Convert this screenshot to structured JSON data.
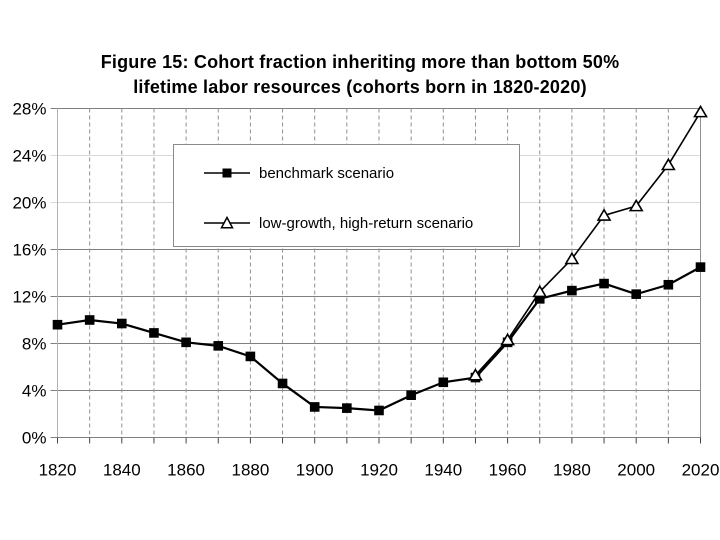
{
  "title_lines": {
    "line1": "Figure 15: Cohort fraction inheriting more than bottom 50%",
    "line2": "lifetime labor resources (cohorts born in 1820-2020)"
  },
  "legend": {
    "items": [
      {
        "label": "benchmark scenario",
        "marker": "filled-square"
      },
      {
        "label": "low-growth, high-return scenario",
        "marker": "open-triangle"
      }
    ]
  },
  "colors": {
    "series": "#000000",
    "gridline_major": "#808080",
    "gridline_faint": "#d9d9d9",
    "gridline_vertical": "#909090",
    "axis_left": "#b3b3b3",
    "tick": "#444444",
    "background": "#ffffff"
  },
  "chart_data": {
    "type": "line",
    "title": "Figure 15: Cohort fraction inheriting more than bottom 50% lifetime labor resources (cohorts born in 1820-2020)",
    "xlabel": "",
    "ylabel": "",
    "xlim": [
      1820,
      2020
    ],
    "ylim": [
      0,
      28
    ],
    "grid": true,
    "legend_position": "upper-left-inside",
    "x": [
      1820,
      1830,
      1840,
      1850,
      1860,
      1870,
      1880,
      1890,
      1900,
      1910,
      1920,
      1930,
      1940,
      1950,
      1960,
      1970,
      1980,
      1990,
      2000,
      2010,
      2020
    ],
    "series": [
      {
        "name": "benchmark scenario",
        "marker": "filled-square",
        "values": [
          9.6,
          10.0,
          9.7,
          8.9,
          8.1,
          7.8,
          6.9,
          4.6,
          2.6,
          2.5,
          2.3,
          3.6,
          4.7,
          5.1,
          8.1,
          11.8,
          12.5,
          13.1,
          12.2,
          13.0,
          14.5
        ]
      },
      {
        "name": "low-growth, high-return scenario",
        "marker": "open-triangle",
        "values": [
          null,
          null,
          null,
          null,
          null,
          null,
          null,
          null,
          null,
          null,
          null,
          null,
          null,
          5.3,
          8.3,
          12.4,
          15.2,
          18.9,
          19.7,
          23.2,
          27.7
        ]
      }
    ],
    "y_ticks": [
      0,
      4,
      8,
      12,
      16,
      20,
      24,
      28
    ],
    "y_tick_labels": [
      "0%",
      "4%",
      "8%",
      "12%",
      "16%",
      "20%",
      "24%",
      "28%"
    ],
    "faint_y_gridlines": [
      20,
      24
    ],
    "x_gridline_step": 10,
    "x_label_ticks": [
      1820,
      1840,
      1860,
      1880,
      1900,
      1920,
      1940,
      1960,
      1980,
      2000,
      2020
    ],
    "x_tick_labels": [
      "1820",
      "1840",
      "1860",
      "1880",
      "1900",
      "1920",
      "1940",
      "1960",
      "1980",
      "2000",
      "2020"
    ]
  }
}
